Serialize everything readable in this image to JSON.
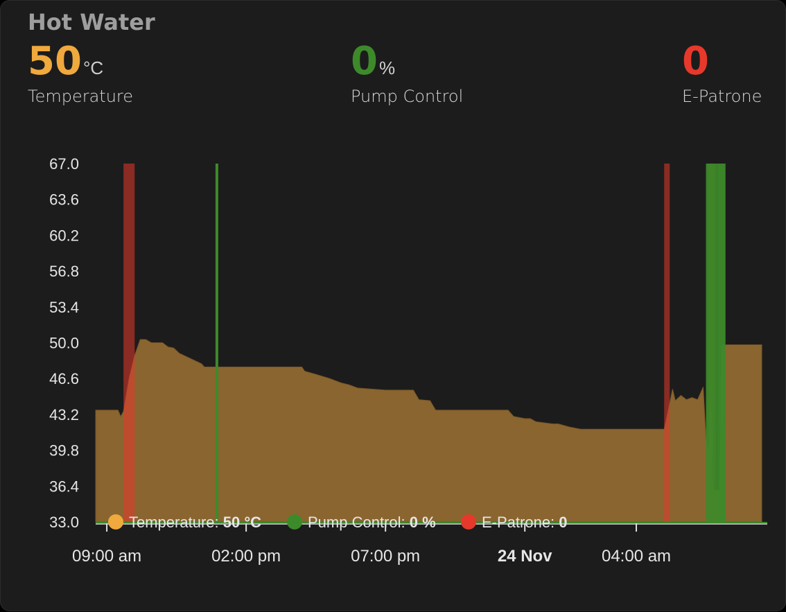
{
  "card": {
    "title": "Hot Water",
    "stats": [
      {
        "value": "50",
        "unit": "°C",
        "label": "Temperature",
        "color": "#f0a93d"
      },
      {
        "value": "0",
        "unit": "%",
        "label": "Pump Control",
        "color": "#3d8a2a"
      },
      {
        "value": "0",
        "unit": "",
        "label": "E-Patrone",
        "color": "#e6392b"
      }
    ]
  },
  "chart_data": {
    "type": "area",
    "ylim": [
      33.0,
      67.0
    ],
    "yticks": [
      "67.0",
      "63.6",
      "60.2",
      "56.8",
      "53.4",
      "50.0",
      "46.6",
      "43.2",
      "39.8",
      "36.4",
      "33.0"
    ],
    "xticks": [
      {
        "label": "09:00 am",
        "hour": 9,
        "bold": false
      },
      {
        "label": "02:00 pm",
        "hour": 14,
        "bold": false
      },
      {
        "label": "07:00 pm",
        "hour": 19,
        "bold": false
      },
      {
        "label": "24 Nov",
        "hour": 24,
        "bold": true
      },
      {
        "label": "04:00 am",
        "hour": 28,
        "bold": false
      }
    ],
    "xlim": [
      8.6,
      32.7
    ],
    "series": [
      {
        "name": "Temperature",
        "unit": "°C",
        "current": "50",
        "color": "#f0a93d",
        "fill": "#8a6530",
        "points": [
          [
            8.6,
            43.6
          ],
          [
            9.4,
            43.6
          ],
          [
            9.5,
            43.0
          ],
          [
            9.6,
            43.5
          ],
          [
            9.8,
            46.6
          ],
          [
            10.0,
            48.8
          ],
          [
            10.2,
            50.3
          ],
          [
            10.4,
            50.3
          ],
          [
            10.6,
            50.0
          ],
          [
            11.0,
            50.0
          ],
          [
            11.2,
            49.6
          ],
          [
            11.4,
            49.5
          ],
          [
            11.6,
            49.0
          ],
          [
            12.0,
            48.5
          ],
          [
            12.4,
            48.0
          ],
          [
            12.5,
            47.7
          ],
          [
            13.5,
            47.7
          ],
          [
            15.0,
            47.7
          ],
          [
            16.0,
            47.7
          ],
          [
            16.1,
            47.3
          ],
          [
            16.5,
            47.0
          ],
          [
            17.0,
            46.6
          ],
          [
            17.4,
            46.2
          ],
          [
            17.7,
            46.0
          ],
          [
            18.0,
            45.7
          ],
          [
            19.0,
            45.5
          ],
          [
            20.0,
            45.5
          ],
          [
            20.2,
            44.6
          ],
          [
            20.6,
            44.5
          ],
          [
            20.8,
            43.6
          ],
          [
            22.0,
            43.6
          ],
          [
            23.0,
            43.6
          ],
          [
            23.4,
            43.6
          ],
          [
            23.6,
            43.0
          ],
          [
            24.0,
            42.8
          ],
          [
            24.2,
            42.8
          ],
          [
            24.4,
            42.5
          ],
          [
            25.0,
            42.3
          ],
          [
            25.2,
            42.3
          ],
          [
            25.6,
            42.0
          ],
          [
            26.0,
            41.8
          ],
          [
            27.0,
            41.8
          ],
          [
            28.0,
            41.8
          ],
          [
            29.0,
            41.8
          ],
          [
            29.1,
            43.0
          ],
          [
            29.3,
            45.6
          ],
          [
            29.4,
            44.5
          ],
          [
            29.6,
            45.0
          ],
          [
            29.8,
            44.6
          ],
          [
            30.0,
            44.8
          ],
          [
            30.2,
            44.6
          ],
          [
            30.4,
            45.8
          ],
          [
            30.5,
            41.0
          ],
          [
            30.6,
            39.5
          ],
          [
            30.65,
            45.0
          ],
          [
            30.7,
            42.0
          ],
          [
            30.75,
            36.0
          ],
          [
            31.0,
            36.0
          ],
          [
            31.05,
            49.8
          ],
          [
            32.5,
            49.8
          ],
          [
            32.5,
            33.0
          ]
        ]
      },
      {
        "name": "Pump Control",
        "unit": "%",
        "current": "0",
        "color": "#3d8a2a",
        "spikes": [
          [
            12.9,
            13.0
          ],
          [
            30.5,
            30.9
          ],
          [
            30.9,
            31.2
          ]
        ]
      },
      {
        "name": "E-Patrone",
        "unit": "",
        "current": "0",
        "color": "#e6392b",
        "spikes": [
          [
            9.6,
            10.0
          ],
          [
            29.0,
            29.2
          ],
          [
            30.6,
            30.8
          ]
        ]
      }
    ],
    "legend": [
      {
        "name": "Temperature",
        "value": "50 °C",
        "color": "#f0a93d"
      },
      {
        "name": "Pump Control",
        "value": "0 %",
        "color": "#3d8a2a"
      },
      {
        "name": "E-Patrone",
        "value": "0",
        "color": "#e6392b"
      }
    ]
  }
}
